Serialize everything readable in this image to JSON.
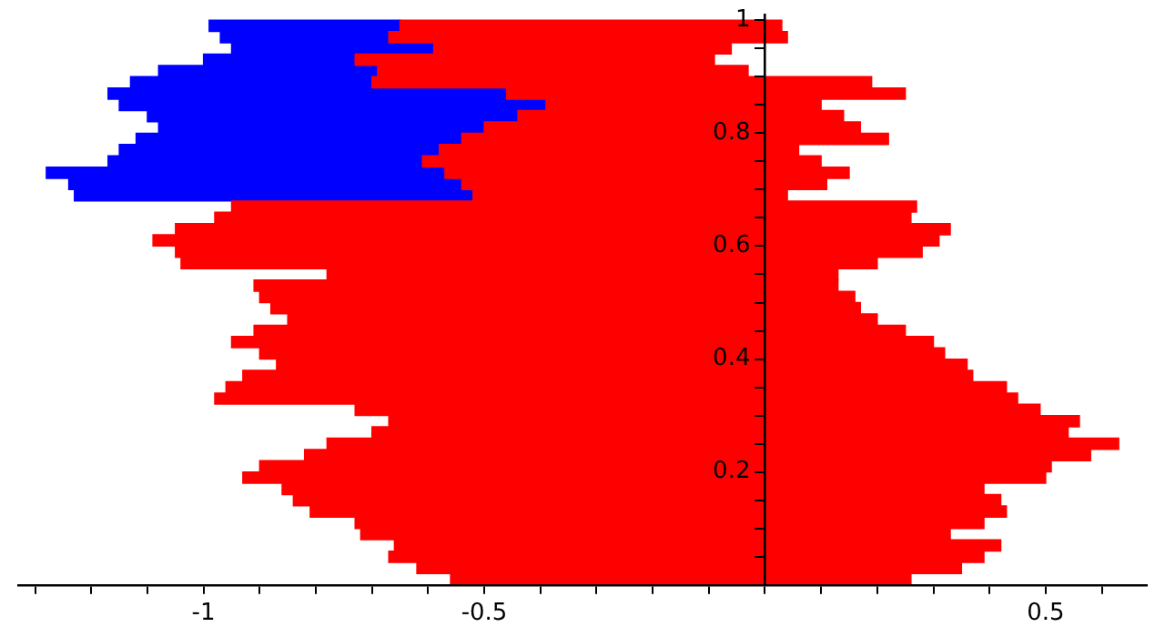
{
  "chart_data": {
    "type": "bar",
    "orientation": "horizontal",
    "grid": false,
    "legend": false,
    "x": [
      0.01,
      0.03,
      0.05,
      0.07,
      0.09,
      0.11,
      0.13,
      0.15,
      0.17,
      0.19,
      0.21,
      0.23,
      0.25,
      0.27,
      0.29,
      0.31,
      0.33,
      0.35,
      0.37,
      0.39,
      0.41,
      0.43,
      0.45,
      0.47,
      0.49,
      0.51,
      0.53,
      0.55,
      0.57,
      0.59,
      0.61,
      0.63,
      0.65,
      0.67,
      0.69,
      0.71,
      0.73,
      0.75,
      0.77,
      0.79,
      0.81,
      0.83,
      0.85,
      0.87,
      0.89,
      0.91,
      0.93,
      0.95,
      0.97,
      0.99
    ],
    "series": [
      {
        "color": "#ff0000",
        "base": [
          -0.56,
          -0.62,
          -0.67,
          -0.66,
          -0.72,
          -0.73,
          -0.81,
          -0.84,
          -0.86,
          -0.93,
          -0.9,
          -0.82,
          -0.78,
          -0.7,
          -0.67,
          -0.73,
          -0.98,
          -0.96,
          -0.93,
          -0.87,
          -0.9,
          -0.95,
          -0.91,
          -0.85,
          -0.88,
          -0.9,
          -0.91,
          -0.78,
          -1.04,
          -1.05,
          -1.09,
          -1.05,
          -0.98,
          -0.95,
          -0.52,
          -0.54,
          -0.57,
          -0.61,
          -0.58,
          -0.54,
          -0.5,
          -0.44,
          -0.39,
          -0.46,
          -0.7,
          -0.69,
          -0.73,
          -0.59,
          -0.67,
          -0.65
        ],
        "values": [
          0.82,
          0.97,
          1.06,
          1.08,
          1.05,
          1.12,
          1.24,
          1.26,
          1.25,
          1.43,
          1.41,
          1.4,
          1.41,
          1.24,
          1.23,
          1.22,
          1.43,
          1.39,
          1.3,
          1.23,
          1.22,
          1.25,
          1.16,
          1.05,
          1.05,
          1.06,
          1.04,
          0.91,
          1.24,
          1.33,
          1.4,
          1.38,
          1.24,
          1.22,
          0.56,
          0.65,
          0.72,
          0.71,
          0.64,
          0.76,
          0.67,
          0.58,
          0.49,
          0.71,
          0.89,
          0.66,
          0.64,
          0.53,
          0.71,
          0.68
        ]
      },
      {
        "color": "#0000ff",
        "base": [
          null,
          null,
          null,
          null,
          null,
          null,
          null,
          null,
          null,
          null,
          null,
          null,
          null,
          null,
          null,
          null,
          null,
          null,
          null,
          null,
          null,
          null,
          null,
          null,
          null,
          null,
          null,
          null,
          null,
          null,
          null,
          null,
          null,
          null,
          -1.23,
          -1.24,
          -1.28,
          -1.17,
          -1.15,
          -1.12,
          -1.08,
          -1.1,
          -1.15,
          -1.17,
          -1.13,
          -1.08,
          -1.0,
          -0.95,
          -0.97,
          -0.99
        ],
        "values": [
          null,
          null,
          null,
          null,
          null,
          null,
          null,
          null,
          null,
          null,
          null,
          null,
          null,
          null,
          null,
          null,
          null,
          null,
          null,
          null,
          null,
          null,
          null,
          null,
          null,
          null,
          null,
          null,
          null,
          null,
          null,
          null,
          null,
          null,
          0.71,
          0.7,
          0.71,
          0.56,
          0.57,
          0.58,
          0.58,
          0.66,
          0.76,
          0.71,
          0.43,
          0.39,
          0.27,
          0.36,
          0.3,
          0.34
        ]
      }
    ],
    "xlim": [
      -1.33,
      0.68
    ],
    "xticks": [
      {
        "value": -1.3,
        "label": null
      },
      {
        "value": -1.2,
        "label": null
      },
      {
        "value": -1.1,
        "label": null
      },
      -1,
      {
        "value": -0.9,
        "label": null
      },
      {
        "value": -0.8,
        "label": null
      },
      {
        "value": -0.7,
        "label": null
      },
      {
        "value": -0.6,
        "label": null
      },
      -0.5,
      {
        "value": -0.4,
        "label": null
      },
      {
        "value": -0.3,
        "label": null
      },
      {
        "value": -0.2,
        "label": null
      },
      {
        "value": -0.1,
        "label": null
      },
      {
        "value": 0,
        "label": null
      },
      {
        "value": 0.1,
        "label": null
      },
      {
        "value": 0.2,
        "label": null
      },
      {
        "value": 0.3,
        "label": null
      },
      {
        "value": 0.4,
        "label": null
      },
      0.5,
      {
        "value": 0.6,
        "label": null
      }
    ],
    "ylim": [
      0,
      1.01
    ],
    "yticks": [
      {
        "value": 0,
        "label": null
      },
      {
        "value": 0.05,
        "label": null
      },
      {
        "value": 0.1,
        "label": null
      },
      {
        "value": 0.15,
        "label": null
      },
      0.2,
      {
        "value": 0.25,
        "label": null
      },
      {
        "value": 0.3,
        "label": null
      },
      {
        "value": 0.35,
        "label": null
      },
      0.4,
      {
        "value": 0.45,
        "label": null
      },
      {
        "value": 0.5,
        "label": null
      },
      {
        "value": 0.55,
        "label": null
      },
      0.6,
      {
        "value": 0.65,
        "label": null
      },
      {
        "value": 0.7,
        "label": null
      },
      {
        "value": 0.75,
        "label": null
      },
      0.8,
      {
        "value": 0.85,
        "label": null
      },
      {
        "value": 0.9,
        "label": null
      },
      {
        "value": 0.95,
        "label": null
      },
      1
    ]
  }
}
